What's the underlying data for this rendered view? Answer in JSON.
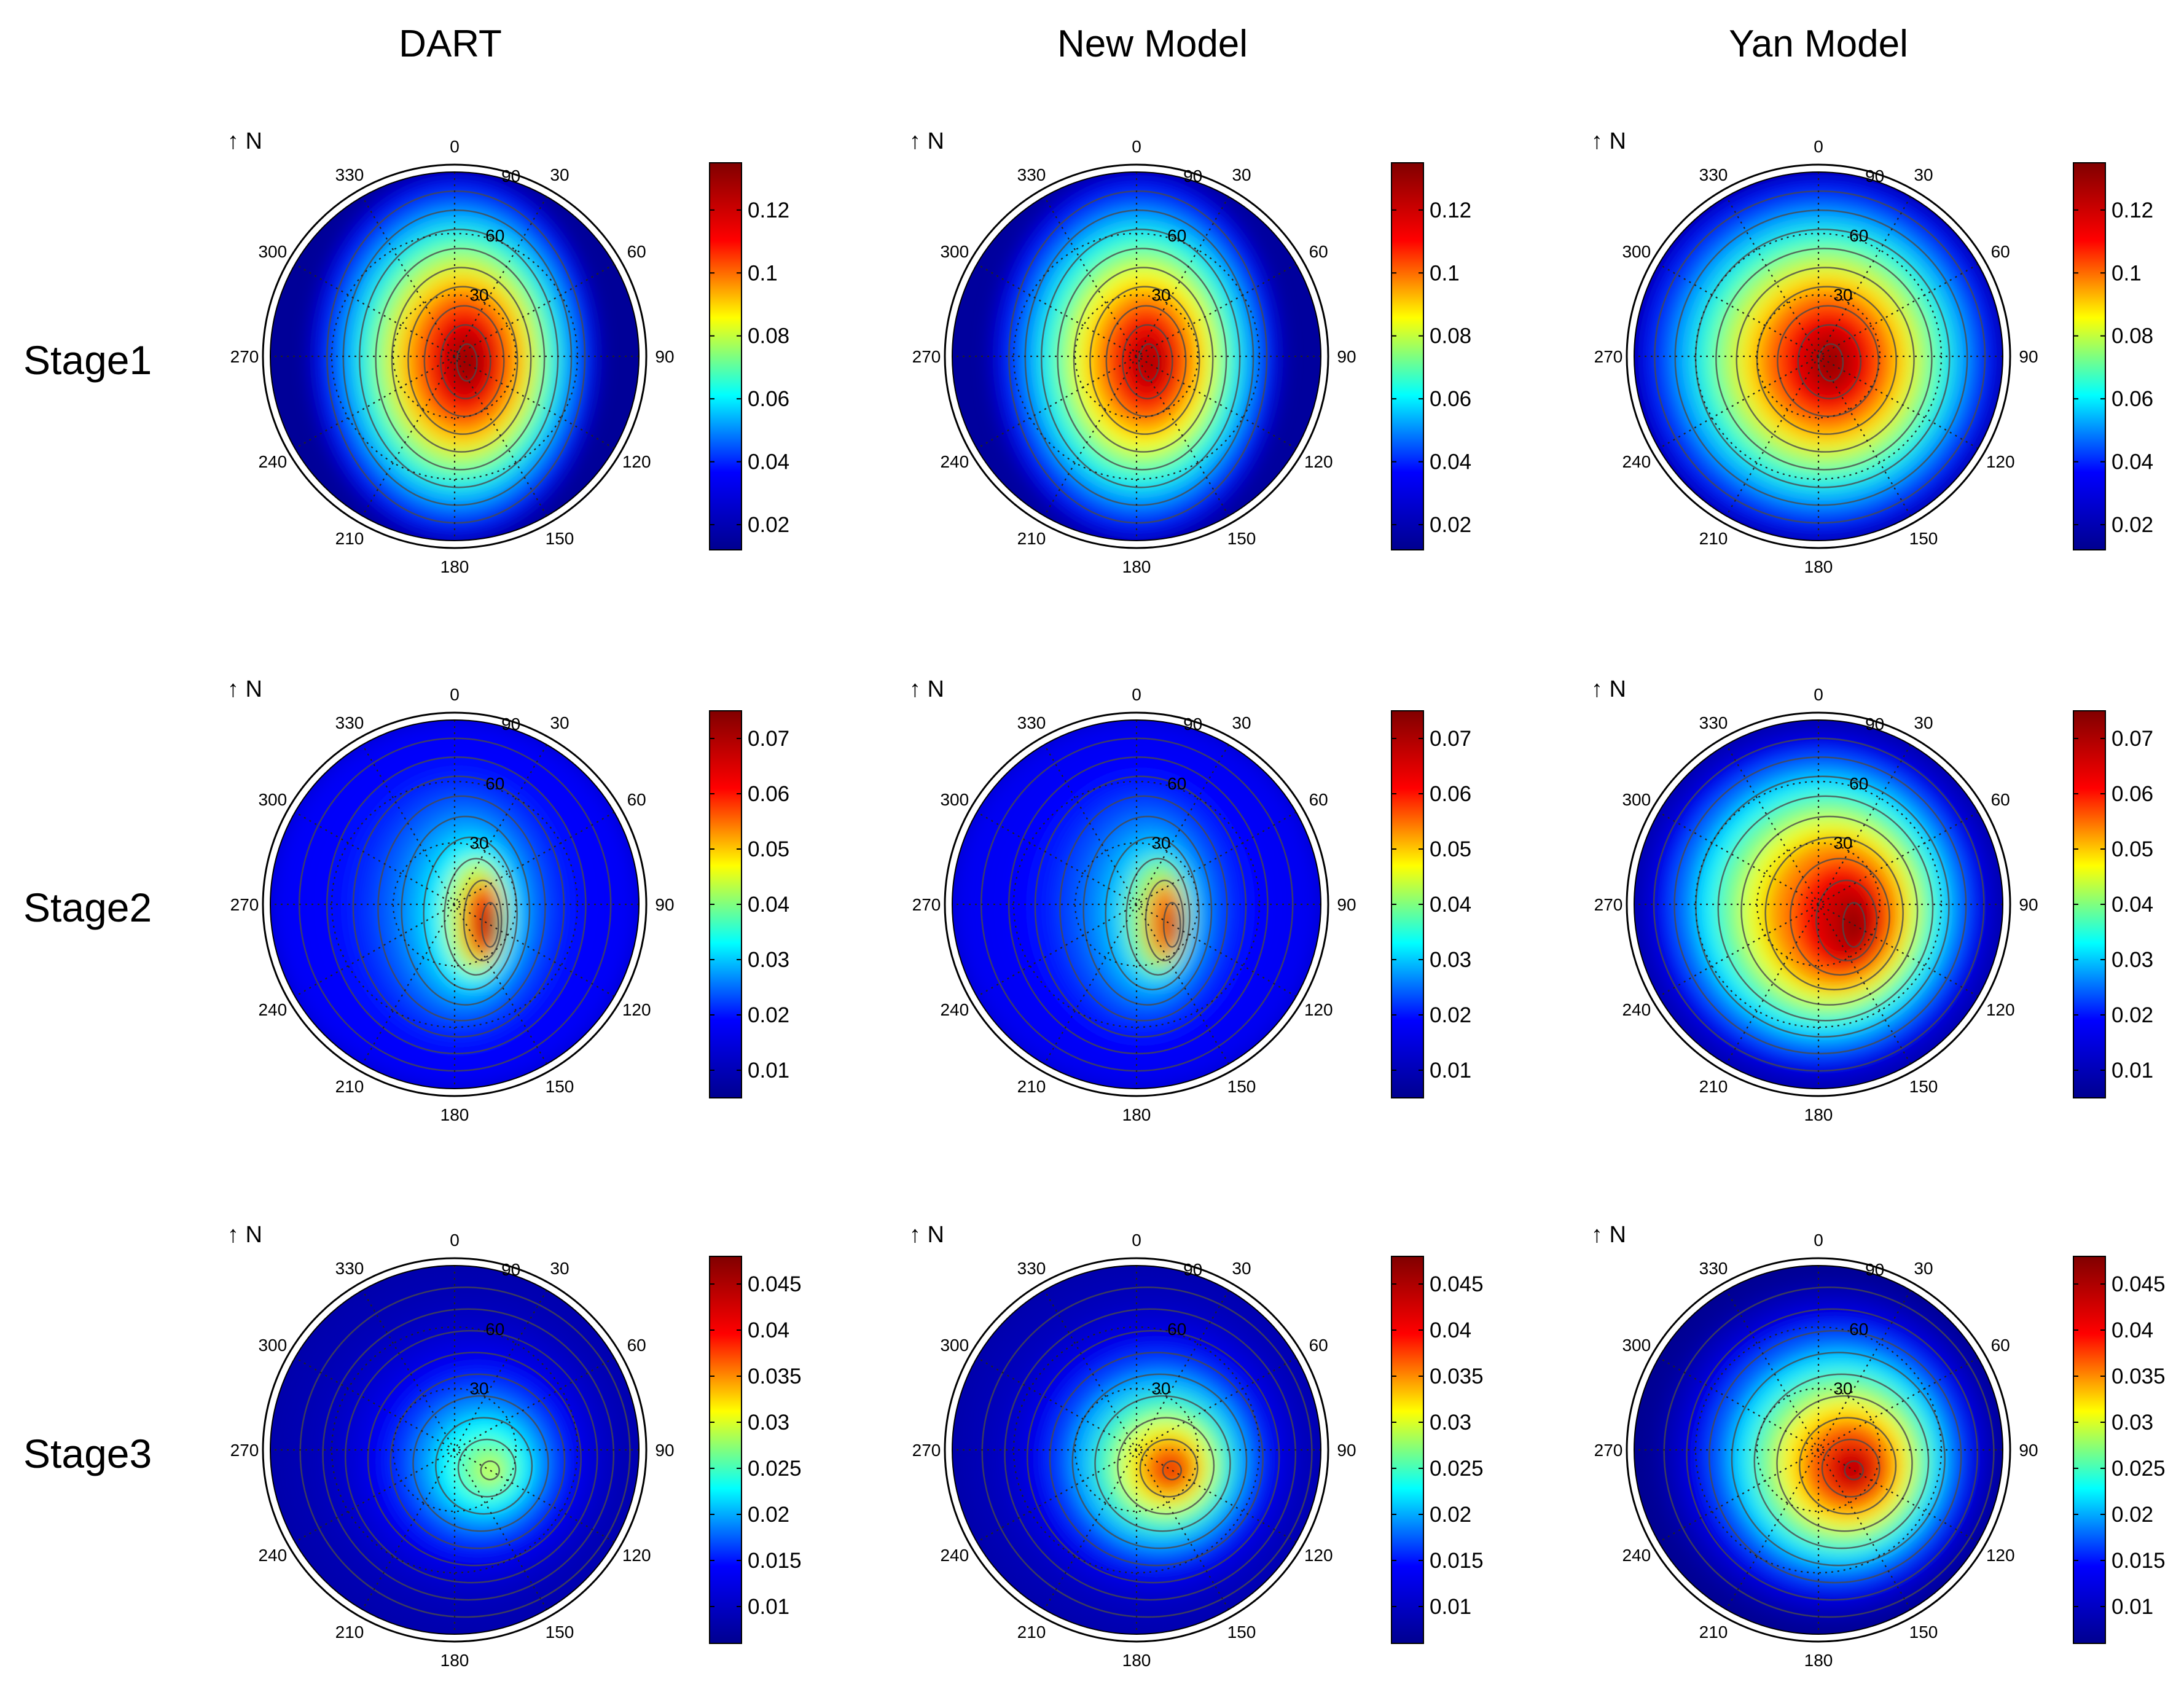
{
  "figure": {
    "column_titles": [
      "DART",
      "New Model",
      "Yan Model"
    ],
    "row_labels": [
      "Stage1",
      "Stage2",
      "Stage3"
    ],
    "north_label": "N",
    "north_arrow_glyph": "↑",
    "azimuth_labels": [
      "0",
      "30",
      "60",
      "90",
      "120",
      "150",
      "180",
      "210",
      "240",
      "270",
      "300",
      "330"
    ],
    "zenith_labels": [
      "30",
      "60",
      "90"
    ]
  },
  "chart_data": {
    "type": "heatmap",
    "projection": "polar",
    "description_axes": {
      "angular": "view azimuth (degrees)",
      "radial": "view zenith (degrees)"
    },
    "colormap": [
      "#00008f",
      "#0000ff",
      "#00ffff",
      "#ffff00",
      "#ff0000",
      "#800000"
    ],
    "contour_color": "#4a4a4a",
    "panels": [
      {
        "row": "Stage1",
        "column": "DART",
        "colorbar_range": [
          0.012,
          0.135
        ],
        "colorbar_ticks": [
          "0.02",
          "0.04",
          "0.06",
          "0.08",
          "0.1",
          "0.12"
        ],
        "min": 0.014,
        "max": 0.134,
        "hotspot": {
          "azimuth": 120,
          "zenith": 20
        },
        "shape": "stage1"
      },
      {
        "row": "Stage1",
        "column": "New Model",
        "colorbar_range": [
          0.012,
          0.135
        ],
        "colorbar_ticks": [
          "0.02",
          "0.04",
          "0.06",
          "0.08",
          "0.1",
          "0.12"
        ],
        "min": 0.015,
        "max": 0.129,
        "hotspot": {
          "azimuth": 120,
          "zenith": 20
        },
        "shape": "stage1"
      },
      {
        "row": "Stage1",
        "column": "Yan Model",
        "colorbar_range": [
          0.012,
          0.135
        ],
        "colorbar_ticks": [
          "0.02",
          "0.04",
          "0.06",
          "0.08",
          "0.1",
          "0.12"
        ],
        "min": 0.014,
        "max": 0.133,
        "hotspot": {
          "azimuth": 120,
          "zenith": 20
        },
        "shape": "stage1_round"
      },
      {
        "row": "Stage2",
        "column": "DART",
        "colorbar_range": [
          0.005,
          0.075
        ],
        "colorbar_ticks": [
          "0.01",
          "0.02",
          "0.03",
          "0.04",
          "0.05",
          "0.06",
          "0.07"
        ],
        "min": 0.012,
        "max": 0.072,
        "hotspot": {
          "azimuth": 120,
          "zenith": 20
        },
        "shape": "stage2"
      },
      {
        "row": "Stage2",
        "column": "New Model",
        "colorbar_range": [
          0.005,
          0.075
        ],
        "colorbar_ticks": [
          "0.01",
          "0.02",
          "0.03",
          "0.04",
          "0.05",
          "0.06",
          "0.07"
        ],
        "min": 0.012,
        "max": 0.066,
        "hotspot": {
          "azimuth": 120,
          "zenith": 20
        },
        "shape": "stage2"
      },
      {
        "row": "Stage2",
        "column": "Yan Model",
        "colorbar_range": [
          0.005,
          0.075
        ],
        "colorbar_ticks": [
          "0.01",
          "0.02",
          "0.03",
          "0.04",
          "0.05",
          "0.06",
          "0.07"
        ],
        "min": 0.008,
        "max": 0.074,
        "hotspot": {
          "azimuth": 120,
          "zenith": 20
        },
        "shape": "stage2_round"
      },
      {
        "row": "Stage3",
        "column": "DART",
        "colorbar_range": [
          0.006,
          0.048
        ],
        "colorbar_ticks": [
          "0.01",
          "0.015",
          "0.02",
          "0.025",
          "0.03",
          "0.035",
          "0.04",
          "0.045"
        ],
        "min": 0.008,
        "max": 0.031,
        "hotspot": {
          "azimuth": 120,
          "zenith": 20
        },
        "shape": "stage3"
      },
      {
        "row": "Stage3",
        "column": "New Model",
        "colorbar_range": [
          0.006,
          0.048
        ],
        "colorbar_ticks": [
          "0.01",
          "0.015",
          "0.02",
          "0.025",
          "0.03",
          "0.035",
          "0.04",
          "0.045"
        ],
        "min": 0.008,
        "max": 0.043,
        "hotspot": {
          "azimuth": 120,
          "zenith": 20
        },
        "shape": "stage3"
      },
      {
        "row": "Stage3",
        "column": "Yan Model",
        "colorbar_range": [
          0.006,
          0.048
        ],
        "colorbar_ticks": [
          "0.01",
          "0.015",
          "0.02",
          "0.025",
          "0.03",
          "0.035",
          "0.04",
          "0.045"
        ],
        "min": 0.006,
        "max": 0.047,
        "hotspot": {
          "azimuth": 120,
          "zenith": 20
        },
        "shape": "stage3_round"
      }
    ]
  }
}
